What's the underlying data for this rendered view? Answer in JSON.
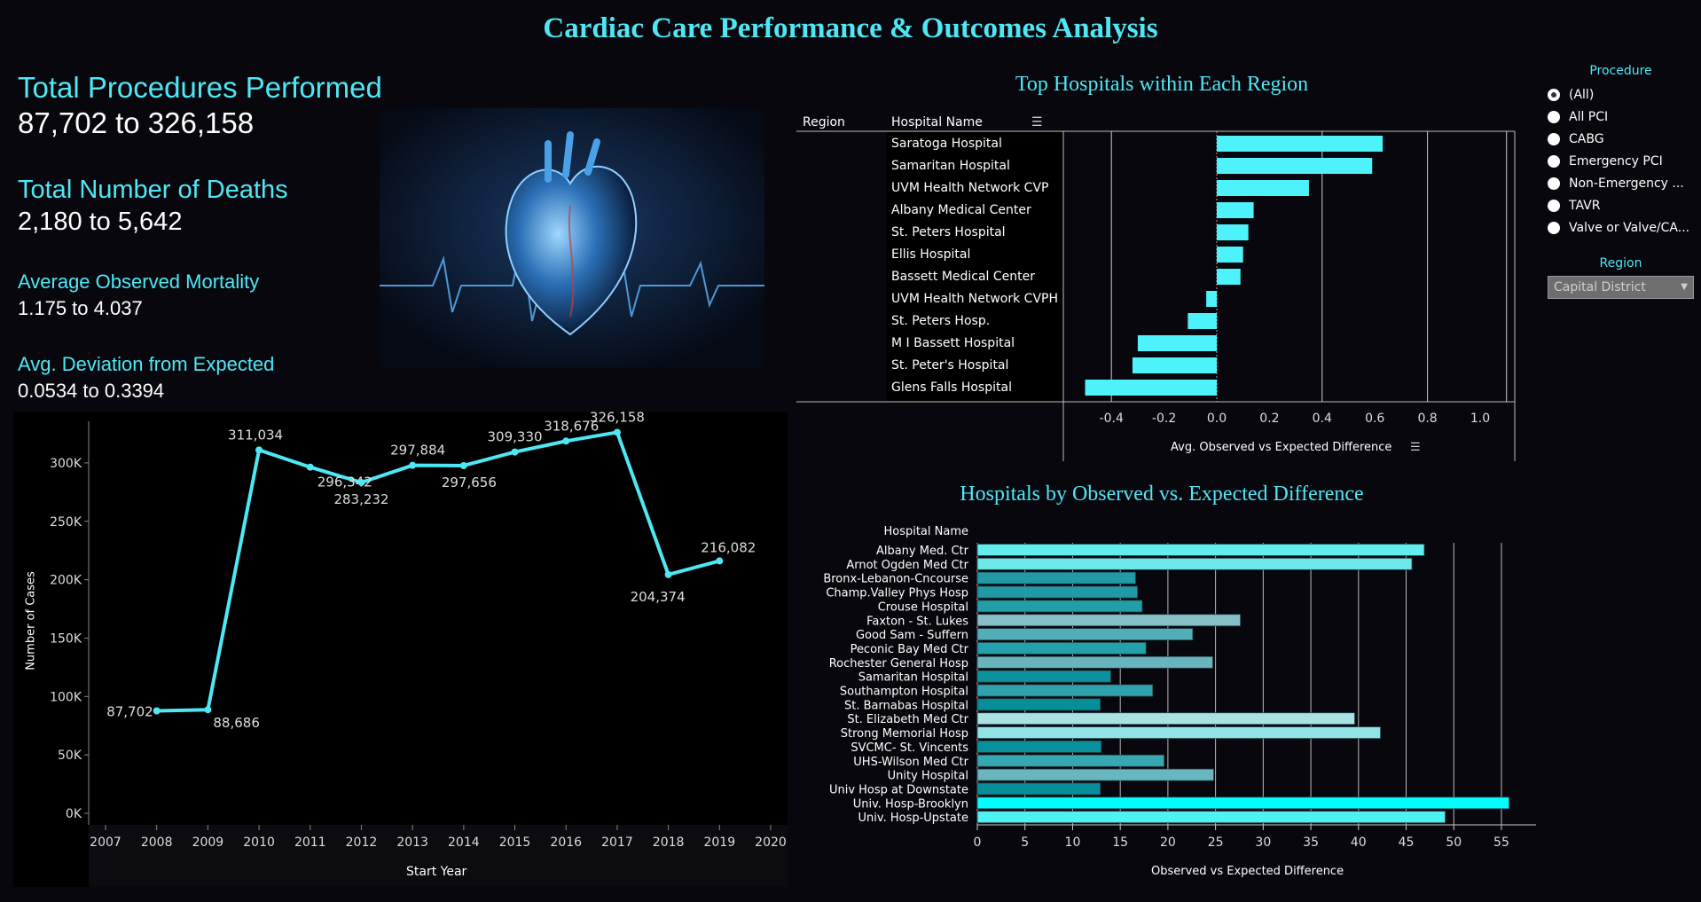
{
  "title": "Cardiac Care Performance & Outcomes Analysis",
  "kpis": [
    {
      "label": "Total Procedures Performed",
      "value": "87,702 to 326,158"
    },
    {
      "label": "Total Number of Deaths",
      "value": "2,180 to 5,642"
    },
    {
      "label": "Average Observed Mortality",
      "value": "1.175 to 4.037"
    },
    {
      "label": "Avg. Deviation from Expected",
      "value": "0.0534 to 0.3394"
    }
  ],
  "colors": {
    "accent": "#4ee8f5",
    "background": "#08070d",
    "line": "#4ee8f5"
  },
  "filters": {
    "procedure_title": "Procedure",
    "procedure_options": [
      "(All)",
      "All PCI",
      "CABG",
      "Emergency PCI",
      "Non-Emergency ...",
      "TAVR",
      "Valve or Valve/CA..."
    ],
    "procedure_selected": "(All)",
    "region_title": "Region",
    "region_value": "Capital District"
  },
  "chart_data": [
    {
      "type": "line",
      "xlabel": "Start Year",
      "ylabel": "Number of Cases",
      "x": [
        2008,
        2009,
        2010,
        2011,
        2012,
        2013,
        2014,
        2015,
        2016,
        2017,
        2018,
        2019
      ],
      "values": [
        87702,
        88686,
        311034,
        296342,
        283232,
        297884,
        297656,
        309330,
        318676,
        326158,
        204374,
        216082
      ],
      "data_labels": [
        "87,702",
        "88,686",
        "311,034",
        "296,342",
        "283,232",
        "297,884",
        "297,656",
        "309,330",
        "318,676",
        "326,158",
        "204,374",
        "216,082"
      ],
      "x_ticks": [
        "2007",
        "2008",
        "2009",
        "2010",
        "2011",
        "2012",
        "2013",
        "2014",
        "2015",
        "2016",
        "2017",
        "2018",
        "2019",
        "2020"
      ],
      "y_ticks": [
        "0K",
        "50K",
        "100K",
        "150K",
        "200K",
        "250K",
        "300K"
      ],
      "xlim": [
        2007,
        2020
      ],
      "ylim": [
        0,
        330000
      ]
    },
    {
      "type": "bar",
      "title": "Top Hospitals within Each Region",
      "column_headers": [
        "Region",
        "Hospital Name"
      ],
      "categories": [
        "Saratoga Hospital",
        "Samaritan Hospital",
        "UVM Health Network CVP",
        "Albany Medical Center",
        "St. Peters Hospital",
        "Ellis Hospital",
        "Bassett Medical Center",
        "UVM Health Network CVPH",
        "St. Peters Hosp.",
        "M I Bassett Hospital",
        "St. Peter's Hospital",
        "Glens Falls Hospital"
      ],
      "values": [
        0.63,
        0.59,
        0.35,
        0.14,
        0.12,
        0.1,
        0.09,
        -0.04,
        -0.11,
        -0.3,
        -0.32,
        -0.5
      ],
      "xlabel": "Avg. Observed vs Expected Difference",
      "x_ticks": [
        "-0.4",
        "-0.2",
        "0.0",
        "0.2",
        "0.4",
        "0.6",
        "0.8",
        "1.0"
      ],
      "xlim": [
        -0.6,
        1.1
      ],
      "bar_color": "#4ef2fb"
    },
    {
      "type": "bar",
      "title": "Hospitals by Observed vs. Expected Difference",
      "column_header": "Hospital Name",
      "categories": [
        "Albany Med. Ctr",
        "Arnot Ogden Med Ctr",
        "Bronx-Lebanon-Cncourse",
        "Champ.Valley Phys Hosp",
        "Crouse Hospital",
        "Faxton - St. Lukes",
        "Good Sam - Suffern",
        "Peconic Bay Med Ctr",
        "Rochester General Hosp",
        "Samaritan Hospital",
        "Southampton Hospital",
        "St. Barnabas Hospital",
        "St. Elizabeth Med Ctr",
        "Strong Memorial Hosp",
        "SVCMC- St. Vincents",
        "UHS-Wilson Med Ctr",
        "Unity Hospital",
        "Univ Hosp at Downstate",
        "Univ. Hosp-Brooklyn",
        "Univ. Hosp-Upstate"
      ],
      "values": [
        46.9,
        45.6,
        16.6,
        16.8,
        17.3,
        27.6,
        22.6,
        17.7,
        24.7,
        14.0,
        18.4,
        12.9,
        39.6,
        42.3,
        13.0,
        19.6,
        24.8,
        12.9,
        55.8,
        49.1
      ],
      "bar_colors": [
        "#62eef0",
        "#6ee9ea",
        "#1f9aa6",
        "#1f9ba8",
        "#229ea9",
        "#86bfc8",
        "#52aeb6",
        "#22a0ab",
        "#68b5bd",
        "#0c929c",
        "#2ea3ad",
        "#068e9a",
        "#aae2e3",
        "#92e3e5",
        "#06909b",
        "#37a8b2",
        "#68b6bf",
        "#068e9a",
        "#00ffff",
        "#4ef2f2"
      ],
      "xlabel": "Observed vs Expected Difference",
      "x_ticks": [
        "0",
        "5",
        "10",
        "15",
        "20",
        "25",
        "30",
        "35",
        "40",
        "45",
        "50",
        "55"
      ],
      "xlim": [
        0,
        59
      ]
    }
  ]
}
